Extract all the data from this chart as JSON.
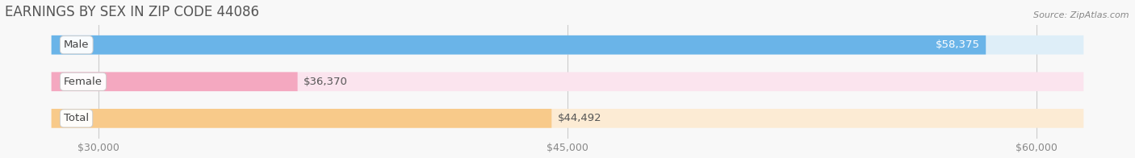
{
  "title": "EARNINGS BY SEX IN ZIP CODE 44086",
  "source": "Source: ZipAtlas.com",
  "categories": [
    "Male",
    "Female",
    "Total"
  ],
  "values": [
    58375,
    36370,
    44492
  ],
  "bar_colors": [
    "#6ab4e8",
    "#f4a8c0",
    "#f8ca8a"
  ],
  "bar_bg_colors": [
    "#deeef8",
    "#fbe4ee",
    "#fcebd4"
  ],
  "xmin": 28500,
  "xmax": 61500,
  "xlim_left": 27000,
  "xlim_right": 63000,
  "xticks": [
    30000,
    45000,
    60000
  ],
  "xtick_labels": [
    "$30,000",
    "$45,000",
    "$60,000"
  ],
  "title_fontsize": 12,
  "bar_height": 0.52,
  "bg_color": "#f8f8f8",
  "category_fontsize": 9.5,
  "value_fontsize": 9.5
}
